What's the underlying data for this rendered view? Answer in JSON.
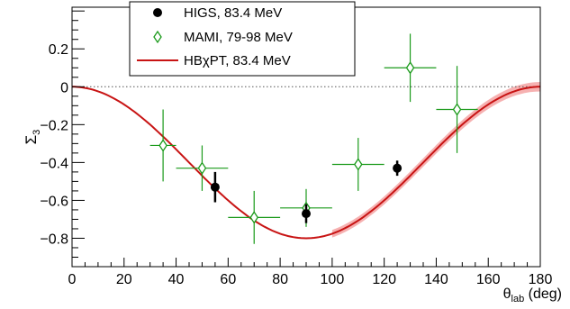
{
  "chart_data": {
    "type": "scatter",
    "xlabel": "θ",
    "xlabel_sub": "lab",
    "xlabel_unit": " (deg)",
    "ylabel": "Σ",
    "ylabel_sub": "3",
    "xlim": [
      0,
      180
    ],
    "ylim": [
      -0.95,
      0.42
    ],
    "x_ticks": [
      0,
      20,
      40,
      60,
      80,
      100,
      120,
      140,
      160,
      180
    ],
    "x_tick_labels": [
      "0",
      "20",
      "40",
      "60",
      "80",
      "100",
      "120",
      "140",
      "160",
      "180"
    ],
    "y_ticks": [
      -0.8,
      -0.6,
      -0.4,
      -0.2,
      0,
      0.2
    ],
    "y_tick_labels": [
      "−0.8",
      "−0.6",
      "−0.4",
      "−0.2",
      "0",
      "0.2"
    ],
    "reference_line_y": 0,
    "legend_position": "top-center",
    "colors": {
      "higs": "#000000",
      "mami": "#1a9a1a",
      "theory": "#c81414",
      "band": "#f4a3a3",
      "reference": "#555555"
    },
    "series": [
      {
        "name": "HIGS, 83.4 MeV",
        "marker": "filled-circle",
        "points": [
          {
            "x": 55,
            "y": -0.53,
            "yerr": 0.08
          },
          {
            "x": 90,
            "y": -0.67,
            "yerr": 0.05
          },
          {
            "x": 125,
            "y": -0.43,
            "yerr": 0.04
          }
        ]
      },
      {
        "name": "MAMI, 79-98 MeV",
        "marker": "open-diamond",
        "points": [
          {
            "x": 35,
            "y": -0.31,
            "yerr": 0.19,
            "xerr": 5
          },
          {
            "x": 50,
            "y": -0.43,
            "yerr": 0.12,
            "xerr": 10
          },
          {
            "x": 70,
            "y": -0.69,
            "yerr": 0.14,
            "xerr": 10
          },
          {
            "x": 90,
            "y": -0.64,
            "yerr": 0.1,
            "xerr": 10
          },
          {
            "x": 110,
            "y": -0.41,
            "yerr": 0.14,
            "xerr": 10
          },
          {
            "x": 130,
            "y": 0.1,
            "yerr": 0.18,
            "xerr": 10
          },
          {
            "x": 148,
            "y": -0.12,
            "yerr": 0.23,
            "xerr": 8
          }
        ]
      },
      {
        "name": "HBχPT, 83.4 MeV",
        "marker": "line",
        "amplitude": -0.8,
        "band_width": [
          0,
          0.02,
          0.025
        ],
        "band_x_range": [
          100,
          180
        ]
      }
    ]
  }
}
